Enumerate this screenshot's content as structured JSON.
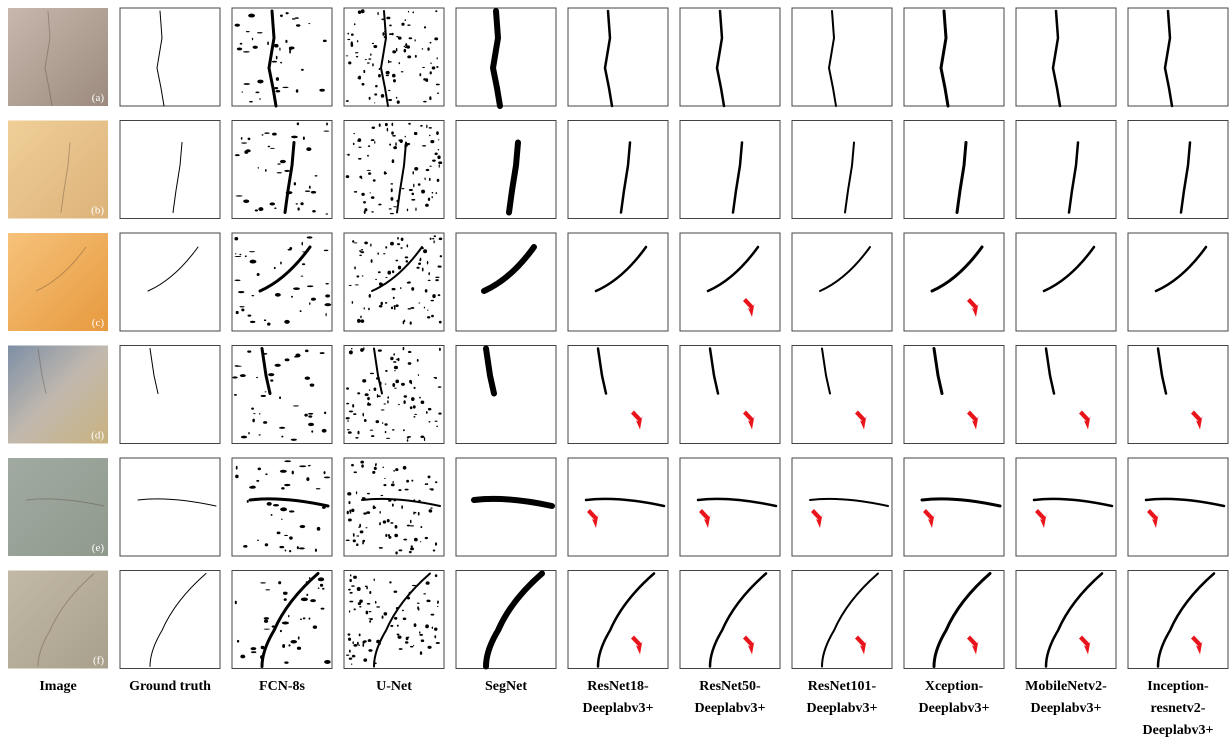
{
  "rows": [
    "(a)",
    "(b)",
    "(c)",
    "(d)",
    "(e)",
    "(f)"
  ],
  "columns": [
    [
      "Image"
    ],
    [
      "Ground truth"
    ],
    [
      "FCN-8s"
    ],
    [
      "U-Net"
    ],
    [
      "SegNet"
    ],
    [
      "ResNet18-",
      "Deeplabv3+"
    ],
    [
      "ResNet50-",
      "Deeplabv3+"
    ],
    [
      "ResNet101-",
      "Deeplabv3+"
    ],
    [
      "Xception-",
      "Deeplabv3+"
    ],
    [
      "MobileNetv2-",
      "Deeplabv3+"
    ],
    [
      "Inception-",
      "resnetv2-",
      "Deeplabv3+"
    ]
  ]
}
